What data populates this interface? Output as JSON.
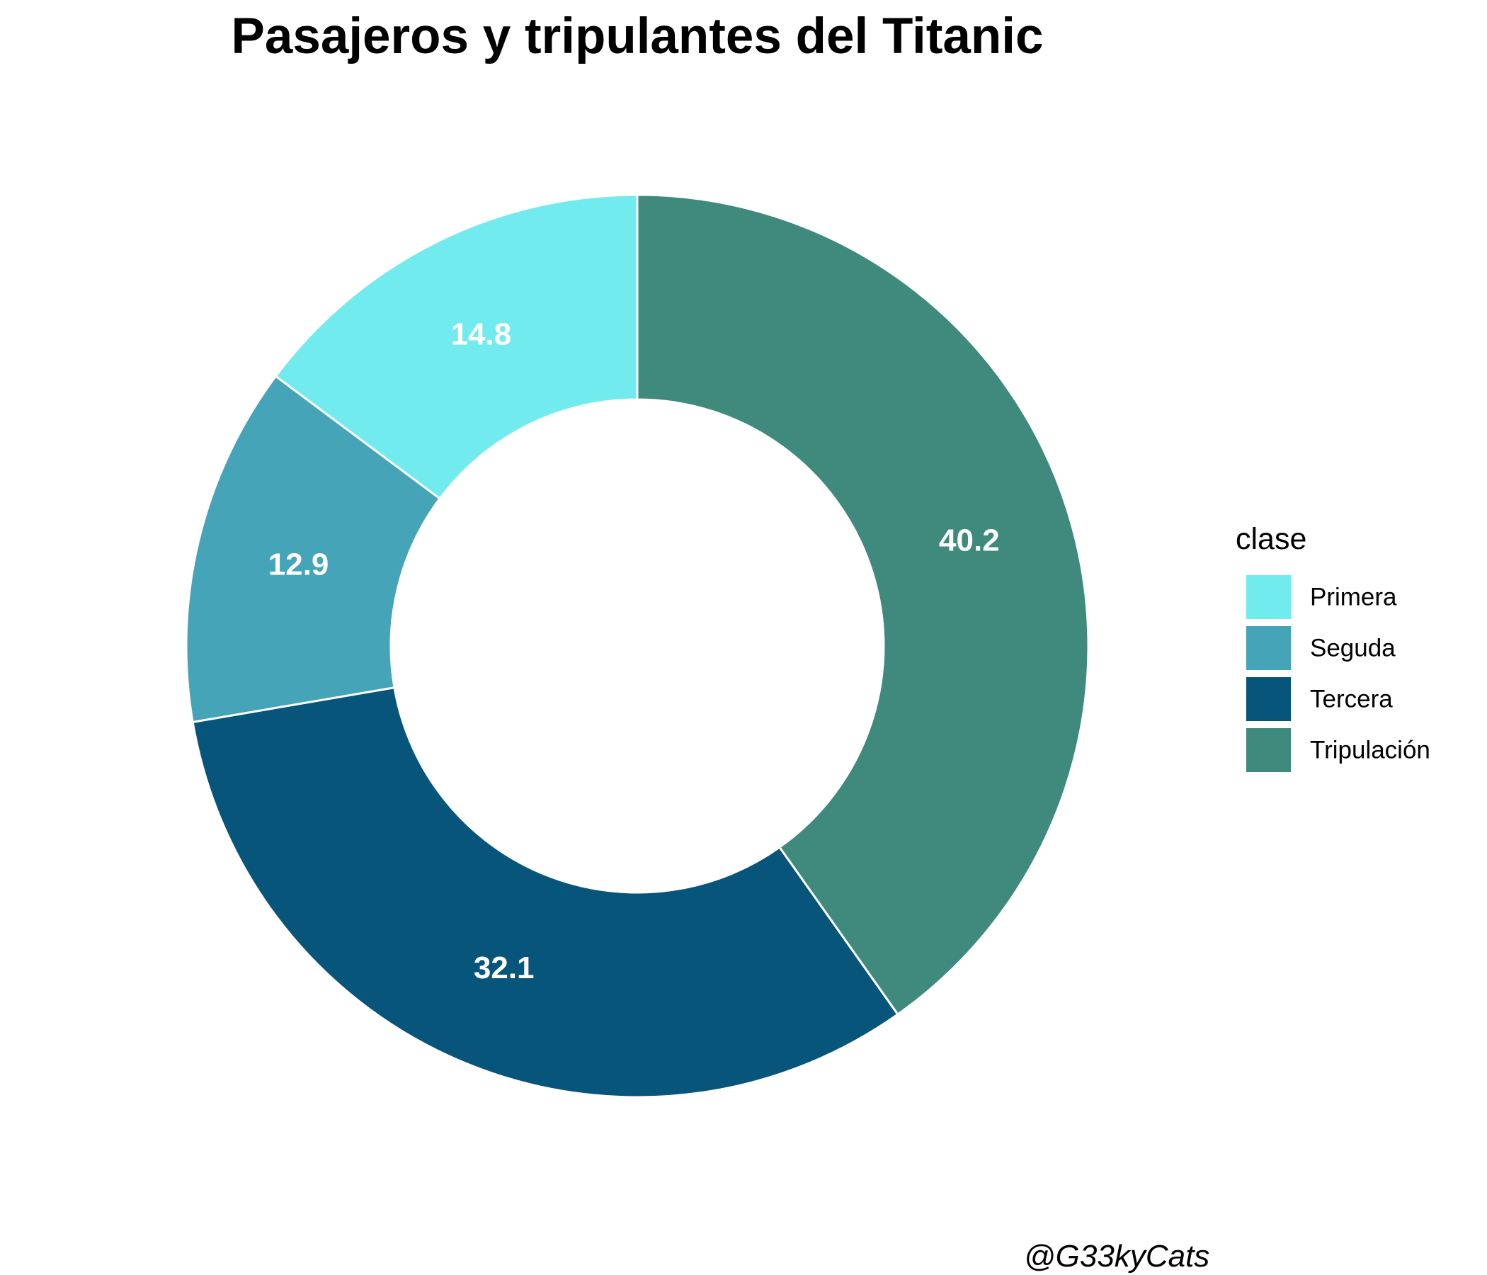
{
  "chart_data": {
    "type": "pie",
    "variant": "donut",
    "title": "Pasajeros y tripulantes del Titanic",
    "legend_title": "clase",
    "legend_position": "right",
    "caption": "@G33kyCats",
    "slices": [
      {
        "name": "Primera",
        "value": 14.8,
        "label": "14.8",
        "color": "#72EBEF"
      },
      {
        "name": "Seguda",
        "value": 12.9,
        "label": "12.9",
        "color": "#46A4B9"
      },
      {
        "name": "Tercera",
        "value": 32.1,
        "label": "32.1",
        "color": "#08557B"
      },
      {
        "name": "Tripulación",
        "value": 40.2,
        "label": "40.2",
        "color": "#3F8A7C"
      }
    ]
  }
}
